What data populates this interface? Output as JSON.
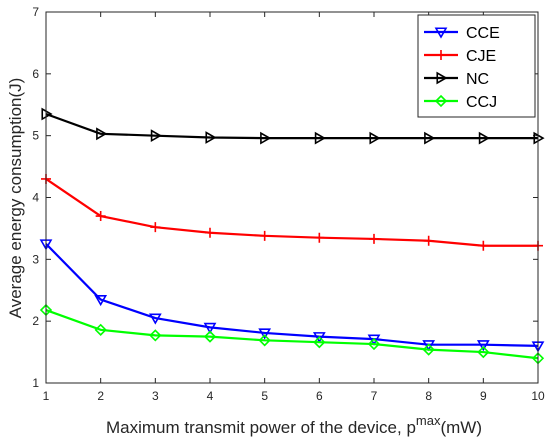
{
  "chart_data": {
    "type": "line",
    "x": [
      1,
      2,
      3,
      4,
      5,
      6,
      7,
      8,
      9,
      10
    ],
    "xlabel": "Maximum transmit power of the device, p",
    "xlabel_superscript": "max",
    "xlabel_unit": "(mW)",
    "ylabel": "Average energy consumption(J)",
    "xlim": [
      1,
      10
    ],
    "ylim": [
      1,
      7
    ],
    "xticks": [
      1,
      2,
      3,
      4,
      5,
      6,
      7,
      8,
      9,
      10
    ],
    "yticks": [
      1,
      2,
      3,
      4,
      5,
      6,
      7
    ],
    "grid": false,
    "legend_position": "top-right",
    "series": [
      {
        "name": "CCE",
        "color": "#0000ff",
        "marker": "triangle-down",
        "values": [
          3.25,
          2.35,
          2.05,
          1.9,
          1.81,
          1.75,
          1.71,
          1.62,
          1.62,
          1.6
        ]
      },
      {
        "name": "CJE",
        "color": "#ff0000",
        "marker": "plus",
        "values": [
          4.3,
          3.7,
          3.52,
          3.43,
          3.38,
          3.35,
          3.33,
          3.3,
          3.22,
          3.22
        ]
      },
      {
        "name": "NC",
        "color": "#000000",
        "marker": "triangle-right",
        "values": [
          5.35,
          5.03,
          5.0,
          4.97,
          4.96,
          4.96,
          4.96,
          4.96,
          4.96,
          4.96
        ]
      },
      {
        "name": "CCJ",
        "color": "#00ff00",
        "marker": "diamond",
        "values": [
          2.18,
          1.86,
          1.77,
          1.75,
          1.69,
          1.66,
          1.63,
          1.54,
          1.5,
          1.4
        ]
      }
    ]
  }
}
